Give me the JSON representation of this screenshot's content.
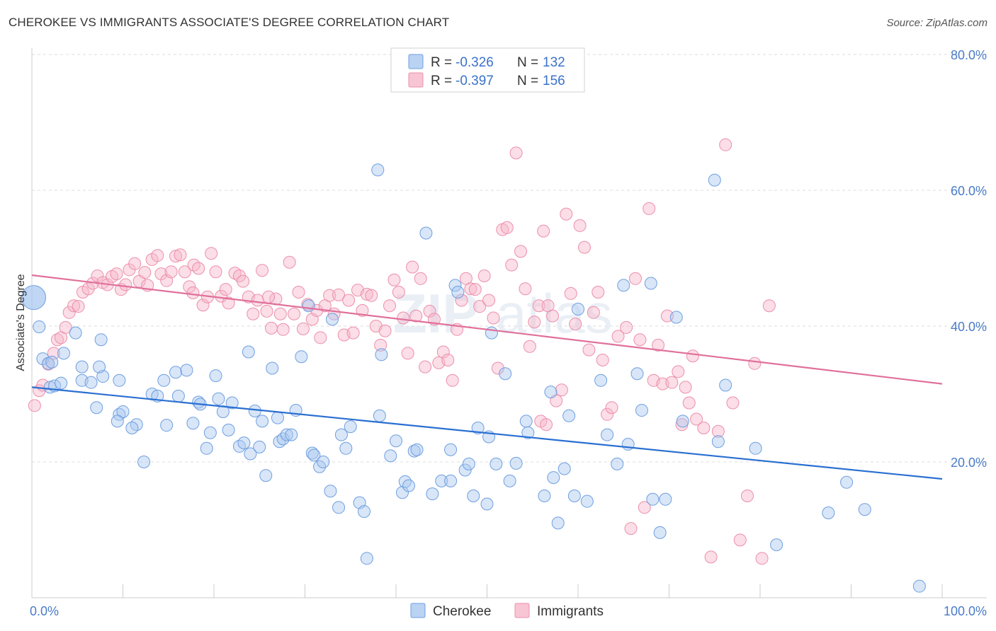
{
  "title": "CHEROKEE VS IMMIGRANTS ASSOCIATE'S DEGREE CORRELATION CHART",
  "source": "Source: ZipAtlas.com",
  "watermark": {
    "zip": "ZIP",
    "atlas": "atlas"
  },
  "colors": {
    "cherokee_fill": "#a9c8f0",
    "cherokee_stroke": "#6f9fe0",
    "cherokee_line": "#2a6fd1",
    "immigrants_fill": "#f6b6c9",
    "immigrants_stroke": "#ec8fab",
    "immigrants_line": "#e0709a",
    "grid": "#dcdcdc",
    "tick_label": "#4a7cc9"
  },
  "legend": {
    "rows": [
      {
        "r_label": "R = ",
        "r_value": "-0.326",
        "n_label": "N = ",
        "n_value": "132"
      },
      {
        "r_label": "R = ",
        "r_value": "-0.397",
        "n_label": "N = ",
        "n_value": "156"
      }
    ]
  },
  "chart_data": {
    "type": "scatter",
    "xlabel": "",
    "ylabel": "Associate's Degree",
    "xlim": [
      0,
      100
    ],
    "ylim": [
      0,
      80
    ],
    "x_tick_labels": [
      "0.0%",
      "100.0%"
    ],
    "y_ticks": [
      20,
      40,
      60,
      80
    ],
    "y_tick_labels": [
      "20.0%",
      "40.0%",
      "60.0%",
      "80.0%"
    ],
    "legend_position": "top-center",
    "series": [
      {
        "name": "Cherokee",
        "r": -0.326,
        "n": 132,
        "trend": {
          "x": [
            0,
            100
          ],
          "y": [
            31.0,
            17.5
          ]
        },
        "points": [
          [
            0.2,
            44.2
          ],
          [
            0.8,
            39.9
          ],
          [
            1.2,
            35.2
          ],
          [
            1.8,
            34.5
          ],
          [
            2.2,
            34.7
          ],
          [
            2.0,
            31.0
          ],
          [
            2.5,
            31.2
          ],
          [
            3.2,
            31.6
          ],
          [
            4.8,
            39.0
          ],
          [
            3.5,
            36.0
          ],
          [
            5.5,
            32.0
          ],
          [
            6.5,
            31.7
          ],
          [
            5.5,
            34.0
          ],
          [
            7.6,
            38.0
          ],
          [
            7.8,
            32.6
          ],
          [
            7.4,
            34.0
          ],
          [
            7.1,
            28.0
          ],
          [
            9.6,
            32.0
          ],
          [
            9.6,
            27.0
          ],
          [
            10.0,
            27.4
          ],
          [
            9.4,
            26.0
          ],
          [
            11.5,
            25.5
          ],
          [
            11.0,
            25.0
          ],
          [
            12.3,
            20.0
          ],
          [
            13.2,
            30.0
          ],
          [
            13.8,
            29.7
          ],
          [
            14.5,
            32.0
          ],
          [
            14.8,
            25.4
          ],
          [
            15.8,
            33.2
          ],
          [
            16.1,
            29.7
          ],
          [
            17.0,
            33.5
          ],
          [
            17.7,
            25.7
          ],
          [
            18.3,
            28.8
          ],
          [
            18.5,
            28.5
          ],
          [
            19.2,
            22.0
          ],
          [
            19.6,
            24.3
          ],
          [
            20.2,
            32.7
          ],
          [
            20.5,
            29.3
          ],
          [
            21.0,
            27.4
          ],
          [
            21.6,
            24.7
          ],
          [
            22.0,
            28.7
          ],
          [
            22.8,
            22.3
          ],
          [
            23.3,
            22.8
          ],
          [
            24.0,
            21.2
          ],
          [
            24.5,
            27.5
          ],
          [
            25.0,
            22.2
          ],
          [
            25.3,
            26.0
          ],
          [
            25.7,
            18.0
          ],
          [
            23.8,
            36.2
          ],
          [
            26.4,
            33.8
          ],
          [
            27.0,
            26.5
          ],
          [
            27.2,
            23.0
          ],
          [
            27.6,
            23.4
          ],
          [
            28.0,
            24.0
          ],
          [
            28.5,
            24.0
          ],
          [
            29.0,
            27.6
          ],
          [
            29.6,
            35.5
          ],
          [
            30.4,
            43.0
          ],
          [
            30.8,
            21.3
          ],
          [
            31.0,
            21.0
          ],
          [
            31.6,
            19.3
          ],
          [
            32.0,
            20.0
          ],
          [
            33.0,
            41.0
          ],
          [
            32.8,
            15.7
          ],
          [
            33.7,
            13.3
          ],
          [
            34.0,
            24.0
          ],
          [
            34.5,
            22.0
          ],
          [
            35.0,
            25.2
          ],
          [
            36.0,
            14.0
          ],
          [
            36.5,
            12.7
          ],
          [
            36.8,
            5.8
          ],
          [
            38.0,
            63.0
          ],
          [
            38.2,
            26.8
          ],
          [
            38.4,
            35.8
          ],
          [
            39.4,
            20.9
          ],
          [
            40.0,
            23.1
          ],
          [
            40.7,
            15.5
          ],
          [
            41.0,
            17.1
          ],
          [
            41.4,
            16.5
          ],
          [
            42.0,
            21.6
          ],
          [
            42.3,
            21.8
          ],
          [
            43.3,
            53.7
          ],
          [
            44.0,
            15.3
          ],
          [
            45.0,
            17.2
          ],
          [
            46.0,
            21.8
          ],
          [
            46.0,
            17.2
          ],
          [
            46.5,
            46.0
          ],
          [
            46.8,
            45.0
          ],
          [
            47.6,
            18.8
          ],
          [
            48.0,
            19.7
          ],
          [
            48.5,
            15.0
          ],
          [
            49.0,
            25.0
          ],
          [
            50.0,
            13.8
          ],
          [
            50.2,
            23.7
          ],
          [
            50.5,
            39.0
          ],
          [
            51.0,
            19.7
          ],
          [
            52.0,
            33.0
          ],
          [
            52.5,
            17.2
          ],
          [
            53.2,
            19.8
          ],
          [
            54.3,
            26.0
          ],
          [
            54.5,
            24.3
          ],
          [
            56.3,
            15.0
          ],
          [
            57.0,
            30.3
          ],
          [
            57.3,
            17.7
          ],
          [
            57.8,
            11.0
          ],
          [
            58.5,
            19.0
          ],
          [
            59.0,
            26.8
          ],
          [
            59.6,
            15.0
          ],
          [
            60.0,
            42.5
          ],
          [
            61.0,
            14.2
          ],
          [
            62.5,
            32.0
          ],
          [
            63.2,
            24.0
          ],
          [
            64.3,
            19.7
          ],
          [
            65.0,
            46.0
          ],
          [
            65.5,
            22.6
          ],
          [
            66.5,
            33.0
          ],
          [
            67.0,
            27.6
          ],
          [
            68.0,
            46.3
          ],
          [
            68.2,
            14.5
          ],
          [
            69.0,
            9.6
          ],
          [
            69.6,
            14.5
          ],
          [
            70.8,
            41.3
          ],
          [
            75.0,
            61.5
          ],
          [
            75.4,
            23.0
          ],
          [
            76.2,
            31.3
          ],
          [
            79.5,
            22.0
          ],
          [
            81.8,
            7.8
          ],
          [
            87.5,
            12.5
          ],
          [
            89.5,
            17.0
          ],
          [
            91.5,
            13.0
          ],
          [
            97.5,
            1.7
          ],
          [
            71.5,
            26.0
          ]
        ]
      },
      {
        "name": "Immigrants",
        "r": -0.397,
        "n": 156,
        "trend": {
          "x": [
            0,
            100
          ],
          "y": [
            47.5,
            31.5
          ]
        },
        "points": [
          [
            0.3,
            28.3
          ],
          [
            0.8,
            30.5
          ],
          [
            1.2,
            31.3
          ],
          [
            1.8,
            34.4
          ],
          [
            2.4,
            36.0
          ],
          [
            2.8,
            38.0
          ],
          [
            3.2,
            38.3
          ],
          [
            3.7,
            39.8
          ],
          [
            4.1,
            42.0
          ],
          [
            4.6,
            43.0
          ],
          [
            5.1,
            42.9
          ],
          [
            5.6,
            45.0
          ],
          [
            6.2,
            45.5
          ],
          [
            6.7,
            46.3
          ],
          [
            7.2,
            47.4
          ],
          [
            7.8,
            46.4
          ],
          [
            8.3,
            46.1
          ],
          [
            8.8,
            47.3
          ],
          [
            9.3,
            47.7
          ],
          [
            9.8,
            45.4
          ],
          [
            10.3,
            46.1
          ],
          [
            10.7,
            48.3
          ],
          [
            11.3,
            49.2
          ],
          [
            11.8,
            46.6
          ],
          [
            12.4,
            47.9
          ],
          [
            12.7,
            46.0
          ],
          [
            13.2,
            49.8
          ],
          [
            13.8,
            50.4
          ],
          [
            14.2,
            47.7
          ],
          [
            14.8,
            46.7
          ],
          [
            15.3,
            48.0
          ],
          [
            15.8,
            50.3
          ],
          [
            16.3,
            50.5
          ],
          [
            16.8,
            48.0
          ],
          [
            17.3,
            45.8
          ],
          [
            17.8,
            49.0
          ],
          [
            18.3,
            48.5
          ],
          [
            18.8,
            43.1
          ],
          [
            19.3,
            44.3
          ],
          [
            19.7,
            50.7
          ],
          [
            20.2,
            48.0
          ],
          [
            20.8,
            44.4
          ],
          [
            21.3,
            45.4
          ],
          [
            21.6,
            43.4
          ],
          [
            22.3,
            47.8
          ],
          [
            22.8,
            47.4
          ],
          [
            23.2,
            46.6
          ],
          [
            23.8,
            44.3
          ],
          [
            24.3,
            41.8
          ],
          [
            24.8,
            43.8
          ],
          [
            25.3,
            48.2
          ],
          [
            25.8,
            42.2
          ],
          [
            26.3,
            39.7
          ],
          [
            26.8,
            44.0
          ],
          [
            27.3,
            41.8
          ],
          [
            27.6,
            39.5
          ],
          [
            28.3,
            49.4
          ],
          [
            28.8,
            41.8
          ],
          [
            29.3,
            45.0
          ],
          [
            29.8,
            39.6
          ],
          [
            30.3,
            43.2
          ],
          [
            30.8,
            41.0
          ],
          [
            31.3,
            42.3
          ],
          [
            31.7,
            38.3
          ],
          [
            32.2,
            43.0
          ],
          [
            32.7,
            44.5
          ],
          [
            33.2,
            41.8
          ],
          [
            33.7,
            44.6
          ],
          [
            34.3,
            38.7
          ],
          [
            34.8,
            43.8
          ],
          [
            35.3,
            39.0
          ],
          [
            35.8,
            45.3
          ],
          [
            36.3,
            42.3
          ],
          [
            36.8,
            44.7
          ],
          [
            37.3,
            44.5
          ],
          [
            37.8,
            40.0
          ],
          [
            38.3,
            37.2
          ],
          [
            38.8,
            39.3
          ],
          [
            39.3,
            43.0
          ],
          [
            39.8,
            46.8
          ],
          [
            40.3,
            45.0
          ],
          [
            40.8,
            41.2
          ],
          [
            41.3,
            36.0
          ],
          [
            41.8,
            48.7
          ],
          [
            42.2,
            41.5
          ],
          [
            42.7,
            47.0
          ],
          [
            43.2,
            34.0
          ],
          [
            43.7,
            42.2
          ],
          [
            44.2,
            41.0
          ],
          [
            44.7,
            34.6
          ],
          [
            45.2,
            36.2
          ],
          [
            45.7,
            35.0
          ],
          [
            46.2,
            32.0
          ],
          [
            46.7,
            39.5
          ],
          [
            47.2,
            43.8
          ],
          [
            47.7,
            47.0
          ],
          [
            48.2,
            45.5
          ],
          [
            48.7,
            45.4
          ],
          [
            49.2,
            42.9
          ],
          [
            49.7,
            47.4
          ],
          [
            50.2,
            43.8
          ],
          [
            50.7,
            41.2
          ],
          [
            51.2,
            33.8
          ],
          [
            51.7,
            54.2
          ],
          [
            52.2,
            54.5
          ],
          [
            52.7,
            49.0
          ],
          [
            53.2,
            65.5
          ],
          [
            53.7,
            51.0
          ],
          [
            54.2,
            45.5
          ],
          [
            54.7,
            37.0
          ],
          [
            55.2,
            40.6
          ],
          [
            55.7,
            43.0
          ],
          [
            56.2,
            54.0
          ],
          [
            56.7,
            43.0
          ],
          [
            57.2,
            41.5
          ],
          [
            57.6,
            29.0
          ],
          [
            58.2,
            30.6
          ],
          [
            58.7,
            56.5
          ],
          [
            59.2,
            44.8
          ],
          [
            59.7,
            40.3
          ],
          [
            60.2,
            54.8
          ],
          [
            60.7,
            51.6
          ],
          [
            61.2,
            36.5
          ],
          [
            61.7,
            42.0
          ],
          [
            62.2,
            45.0
          ],
          [
            62.7,
            35.0
          ],
          [
            63.2,
            27.0
          ],
          [
            63.7,
            28.0
          ],
          [
            64.4,
            38.5
          ],
          [
            65.3,
            39.8
          ],
          [
            65.8,
            10.2
          ],
          [
            66.3,
            47.0
          ],
          [
            66.8,
            38.0
          ],
          [
            67.3,
            13.3
          ],
          [
            67.8,
            57.3
          ],
          [
            68.3,
            32.0
          ],
          [
            68.8,
            37.2
          ],
          [
            69.3,
            31.5
          ],
          [
            69.8,
            41.5
          ],
          [
            70.3,
            31.7
          ],
          [
            71.0,
            33.3
          ],
          [
            71.4,
            25.5
          ],
          [
            71.8,
            31.0
          ],
          [
            72.2,
            28.7
          ],
          [
            72.6,
            35.6
          ],
          [
            73.0,
            26.3
          ],
          [
            73.8,
            25.0
          ],
          [
            74.6,
            6.0
          ],
          [
            75.4,
            24.5
          ],
          [
            76.2,
            66.7
          ],
          [
            77.0,
            28.7
          ],
          [
            77.8,
            8.5
          ],
          [
            78.6,
            15.0
          ],
          [
            79.4,
            34.5
          ],
          [
            80.2,
            5.8
          ],
          [
            81.0,
            43.0
          ],
          [
            55.9,
            26.0
          ],
          [
            56.5,
            25.5
          ],
          [
            26.0,
            44.3
          ],
          [
            17.7,
            44.9
          ]
        ]
      }
    ]
  }
}
